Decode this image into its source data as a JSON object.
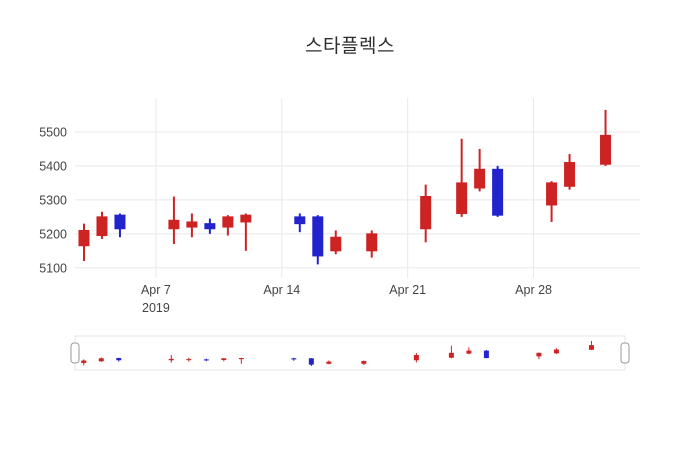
{
  "title": "스타플렉스",
  "colors": {
    "grid": "#e8e8e8",
    "axis_text": "#444444",
    "title_text": "#2d2d2d",
    "background": "#ffffff",
    "slider_border": "#e4e4e4",
    "handle_fill": "#ffffff",
    "handle_border": "#999999"
  },
  "chart_data": {
    "type": "candlestick",
    "title": "스타플렉스",
    "increasing_color": "#cd2323",
    "decreasing_color": "#2323cd",
    "dates": [
      "2019-04-03",
      "2019-04-04",
      "2019-04-05",
      "2019-04-08",
      "2019-04-09",
      "2019-04-10",
      "2019-04-11",
      "2019-04-12",
      "2019-04-15",
      "2019-04-16",
      "2019-04-17",
      "2019-04-19",
      "2019-04-22",
      "2019-04-24",
      "2019-04-25",
      "2019-04-26",
      "2019-04-29",
      "2019-04-30",
      "2019-05-02"
    ],
    "open": [
      5165,
      5195,
      5255,
      5215,
      5220,
      5230,
      5220,
      5235,
      5250,
      5250,
      5150,
      5150,
      5215,
      5260,
      5335,
      5390,
      5285,
      5340,
      5405
    ],
    "high": [
      5230,
      5265,
      5260,
      5310,
      5260,
      5245,
      5255,
      5260,
      5260,
      5255,
      5210,
      5210,
      5345,
      5480,
      5450,
      5400,
      5355,
      5435,
      5565
    ],
    "low": [
      5120,
      5185,
      5190,
      5170,
      5190,
      5200,
      5195,
      5150,
      5205,
      5110,
      5140,
      5130,
      5175,
      5250,
      5325,
      5250,
      5235,
      5330,
      5400
    ],
    "close": [
      5210,
      5250,
      5215,
      5240,
      5235,
      5215,
      5250,
      5255,
      5230,
      5135,
      5190,
      5200,
      5310,
      5350,
      5390,
      5255,
      5350,
      5410,
      5490
    ],
    "yticks": [
      5100,
      5200,
      5300,
      5400,
      5500
    ],
    "xticks": [
      {
        "date": "2019-04-07",
        "label": "Apr 7",
        "sublabel": "2019"
      },
      {
        "date": "2019-04-14",
        "label": "Apr 14",
        "sublabel": ""
      },
      {
        "date": "2019-04-21",
        "label": "Apr 21",
        "sublabel": ""
      },
      {
        "date": "2019-04-28",
        "label": "Apr 28",
        "sublabel": ""
      }
    ],
    "x_range": [
      "2019-04-02T12:00:00Z",
      "2019-05-03T22:00:00Z"
    ],
    "y_range": [
      5070,
      5600
    ],
    "grid": true,
    "legend": "none",
    "rangeslider": true
  }
}
